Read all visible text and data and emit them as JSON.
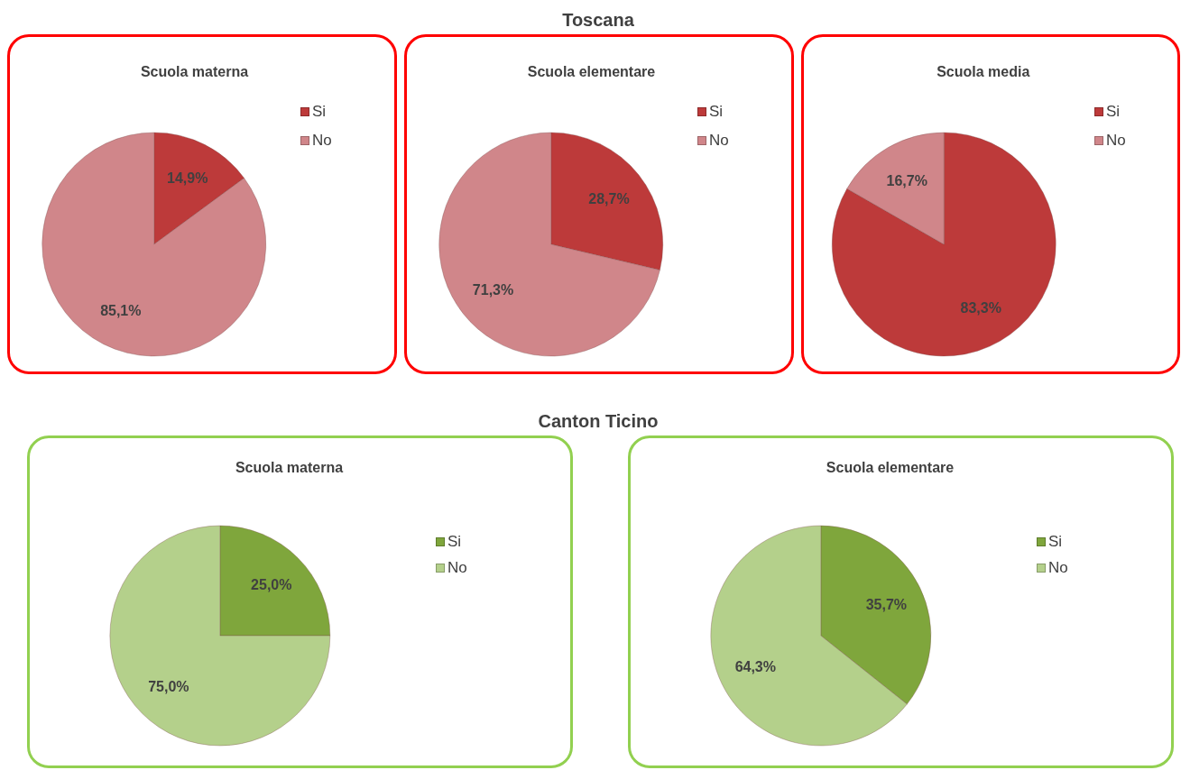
{
  "chart_data": [
    {
      "type": "pie",
      "title": "Scuola materna",
      "annotations": [
        "Toscana"
      ],
      "categories": [
        "Si",
        "No"
      ],
      "values": [
        14.9,
        85.1
      ],
      "colors": [
        "#bd3a3a",
        "#d0868a"
      ],
      "value_labels": [
        "14,9%",
        "85,1%"
      ],
      "legend": "top right"
    },
    {
      "type": "pie",
      "title": "Scuola elementare",
      "categories": [
        "Si",
        "No"
      ],
      "values": [
        28.7,
        71.3
      ],
      "colors": [
        "#bd3a3a",
        "#d0868a"
      ],
      "value_labels": [
        "28,7%",
        "71,3%"
      ],
      "legend": "top right"
    },
    {
      "type": "pie",
      "title": "Scuola media",
      "categories": [
        "Si",
        "No"
      ],
      "values": [
        83.3,
        16.7
      ],
      "colors": [
        "#bd3a3a",
        "#d0868a"
      ],
      "value_labels": [
        "83,3%",
        "16,7%"
      ],
      "legend": "top right"
    },
    {
      "type": "pie",
      "title": "Scuola materna",
      "annotations": [
        "Canton Ticino"
      ],
      "categories": [
        "Si",
        "No"
      ],
      "values": [
        25.0,
        75.0
      ],
      "colors": [
        "#7fa63c",
        "#b4d08b"
      ],
      "value_labels": [
        "25,0%",
        "75,0%"
      ],
      "legend": "top right"
    },
    {
      "type": "pie",
      "title": "Scuola elementare",
      "categories": [
        "Si",
        "No"
      ],
      "values": [
        35.7,
        64.3
      ],
      "colors": [
        "#7fa63c",
        "#b4d08b"
      ],
      "value_labels": [
        "35,7%",
        "64,3%"
      ],
      "legend": "top right"
    }
  ]
}
